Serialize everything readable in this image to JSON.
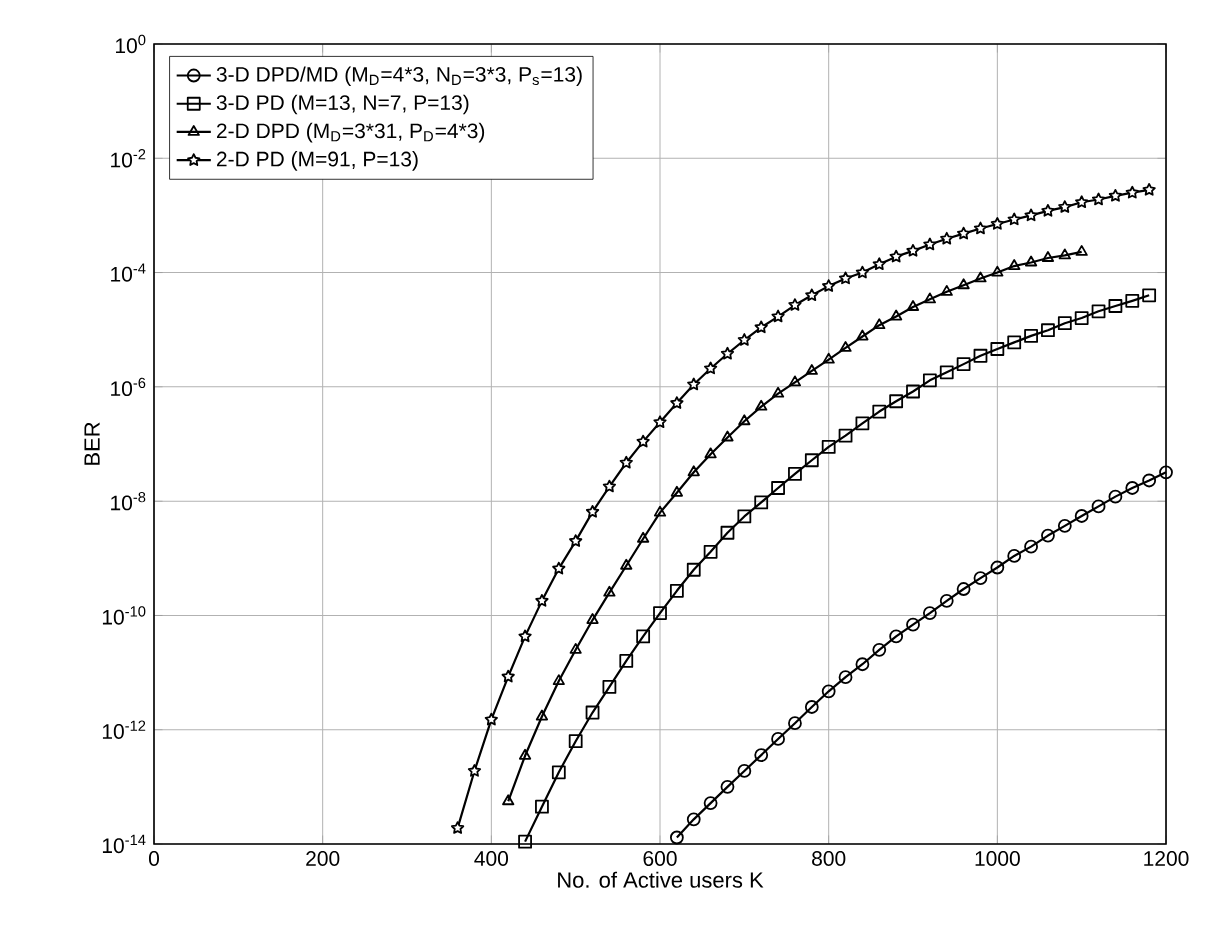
{
  "chart_data": {
    "type": "line",
    "xlabel": "No. of Active users K",
    "ylabel": "BER",
    "log": "y",
    "grid": true,
    "legend": "top left",
    "line_style": "solid",
    "xlim": [
      0,
      1200
    ],
    "xticks": [
      0,
      200,
      400,
      600,
      800,
      1000,
      1200
    ],
    "ylim": [
      1e-14,
      1
    ],
    "yticks": [
      {
        "value": 1e-14,
        "label": "10$^{-14}$"
      },
      {
        "value": 1e-12,
        "label": "10$^{-12}$"
      },
      {
        "value": 1e-10,
        "label": "10$^{-10}$"
      },
      {
        "value": 1e-08,
        "label": "10$^{-8}$"
      },
      {
        "value": 1e-06,
        "label": "10$^{-6}$"
      },
      {
        "value": 0.0001,
        "label": "10$^{-4}$"
      },
      {
        "value": 0.01,
        "label": "10$^{-2}$"
      },
      {
        "value": 1,
        "label": "10$^{0}$"
      }
    ],
    "series": [
      {
        "name": "3-D DPD/MD (M$_{D}$=4*3, N$_{D}$=3*3, P$_{s}$=13)",
        "color": "#000000",
        "marker": "circle",
        "x": [
          620,
          640,
          660,
          680,
          700,
          720,
          740,
          760,
          780,
          800,
          820,
          840,
          860,
          880,
          900,
          920,
          940,
          960,
          980,
          1000,
          1020,
          1040,
          1060,
          1080,
          1100,
          1120,
          1140,
          1160,
          1180,
          1200
        ],
        "values": [
          1.3e-14,
          2.7e-14,
          5.2e-14,
          1e-13,
          1.9e-13,
          3.6e-13,
          6.9e-13,
          1.3e-12,
          2.5e-12,
          4.7e-12,
          8.3e-12,
          1.4e-11,
          2.5e-11,
          4.3e-11,
          6.9e-11,
          1.1e-10,
          1.8e-10,
          2.9e-10,
          4.5e-10,
          6.9e-10,
          1.1e-09,
          1.6e-09,
          2.5e-09,
          3.7e-09,
          5.5e-09,
          8.1e-09,
          1.2e-08,
          1.7e-08,
          2.3e-08,
          3.2e-08
        ]
      },
      {
        "name": "3-D PD (M=13, N=7, P=13)",
        "color": "#000000",
        "marker": "square",
        "x": [
          440,
          460,
          480,
          500,
          520,
          540,
          560,
          580,
          600,
          620,
          640,
          660,
          680,
          700,
          720,
          740,
          760,
          780,
          800,
          820,
          840,
          860,
          880,
          900,
          920,
          940,
          960,
          980,
          1000,
          1020,
          1040,
          1060,
          1080,
          1100,
          1120,
          1140,
          1160,
          1180
        ],
        "values": [
          1.1e-14,
          4.5e-14,
          1.8e-13,
          6.3e-13,
          2e-12,
          5.6e-12,
          1.6e-11,
          4.3e-11,
          1.1e-10,
          2.7e-10,
          6.3e-10,
          1.3e-09,
          2.8e-09,
          5.4e-09,
          9.5e-09,
          1.7e-08,
          3e-08,
          5.2e-08,
          8.9e-08,
          1.4e-07,
          2.3e-07,
          3.7e-07,
          5.6e-07,
          8.3e-07,
          1.3e-06,
          1.8e-06,
          2.5e-06,
          3.5e-06,
          4.6e-06,
          6e-06,
          7.8e-06,
          9.8e-06,
          1.3e-05,
          1.6e-05,
          2.1e-05,
          2.6e-05,
          3.2e-05,
          4e-05
        ]
      },
      {
        "name": "2-D DPD (M$_{D}$=3*31, P$_{D}$=4*3)",
        "color": "#000000",
        "marker": "triangle",
        "x": [
          420,
          440,
          460,
          480,
          500,
          520,
          540,
          560,
          580,
          600,
          620,
          640,
          660,
          680,
          700,
          720,
          740,
          760,
          780,
          800,
          820,
          840,
          860,
          880,
          900,
          920,
          940,
          960,
          980,
          1000,
          1020,
          1040,
          1060,
          1080,
          1100
        ],
        "values": [
          5.6e-14,
          3.5e-13,
          1.7e-12,
          7.1e-12,
          2.5e-11,
          8.3e-11,
          2.5e-10,
          7.4e-10,
          2.2e-09,
          6.3e-09,
          1.4e-08,
          3.2e-08,
          6.6e-08,
          1.3e-07,
          2.5e-07,
          4.5e-07,
          7.6e-07,
          1.2e-06,
          1.9e-06,
          3e-06,
          4.8e-06,
          7.6e-06,
          1.2e-05,
          1.7e-05,
          2.5e-05,
          3.4e-05,
          4.6e-05,
          6e-05,
          7.9e-05,
          0.0001,
          0.00013,
          0.00015,
          0.00018,
          0.0002,
          0.00023
        ]
      },
      {
        "name": "2-D PD (M=91, P=13)",
        "color": "#000000",
        "marker": "star",
        "x": [
          360,
          380,
          400,
          420,
          440,
          460,
          480,
          500,
          520,
          540,
          560,
          580,
          600,
          620,
          640,
          660,
          680,
          700,
          720,
          740,
          760,
          780,
          800,
          820,
          840,
          860,
          880,
          900,
          920,
          940,
          960,
          980,
          1000,
          1020,
          1040,
          1060,
          1080,
          1100,
          1120,
          1140,
          1160,
          1180
        ],
        "values": [
          1.9e-14,
          1.9e-13,
          1.5e-12,
          8.5e-12,
          4.3e-11,
          1.8e-10,
          6.6e-10,
          2e-09,
          6.5e-09,
          1.8e-08,
          4.7e-08,
          1.1e-07,
          2.4e-07,
          5.2e-07,
          1.1e-06,
          2.1e-06,
          3.8e-06,
          6.6e-06,
          1.1e-05,
          1.7e-05,
          2.7e-05,
          4e-05,
          5.8e-05,
          7.9e-05,
          0.0001,
          0.00014,
          0.00019,
          0.00024,
          0.00031,
          0.00039,
          0.00048,
          0.00059,
          0.00071,
          0.00085,
          0.001,
          0.0012,
          0.0014,
          0.0017,
          0.0019,
          0.0022,
          0.0025,
          0.0028
        ]
      }
    ]
  }
}
